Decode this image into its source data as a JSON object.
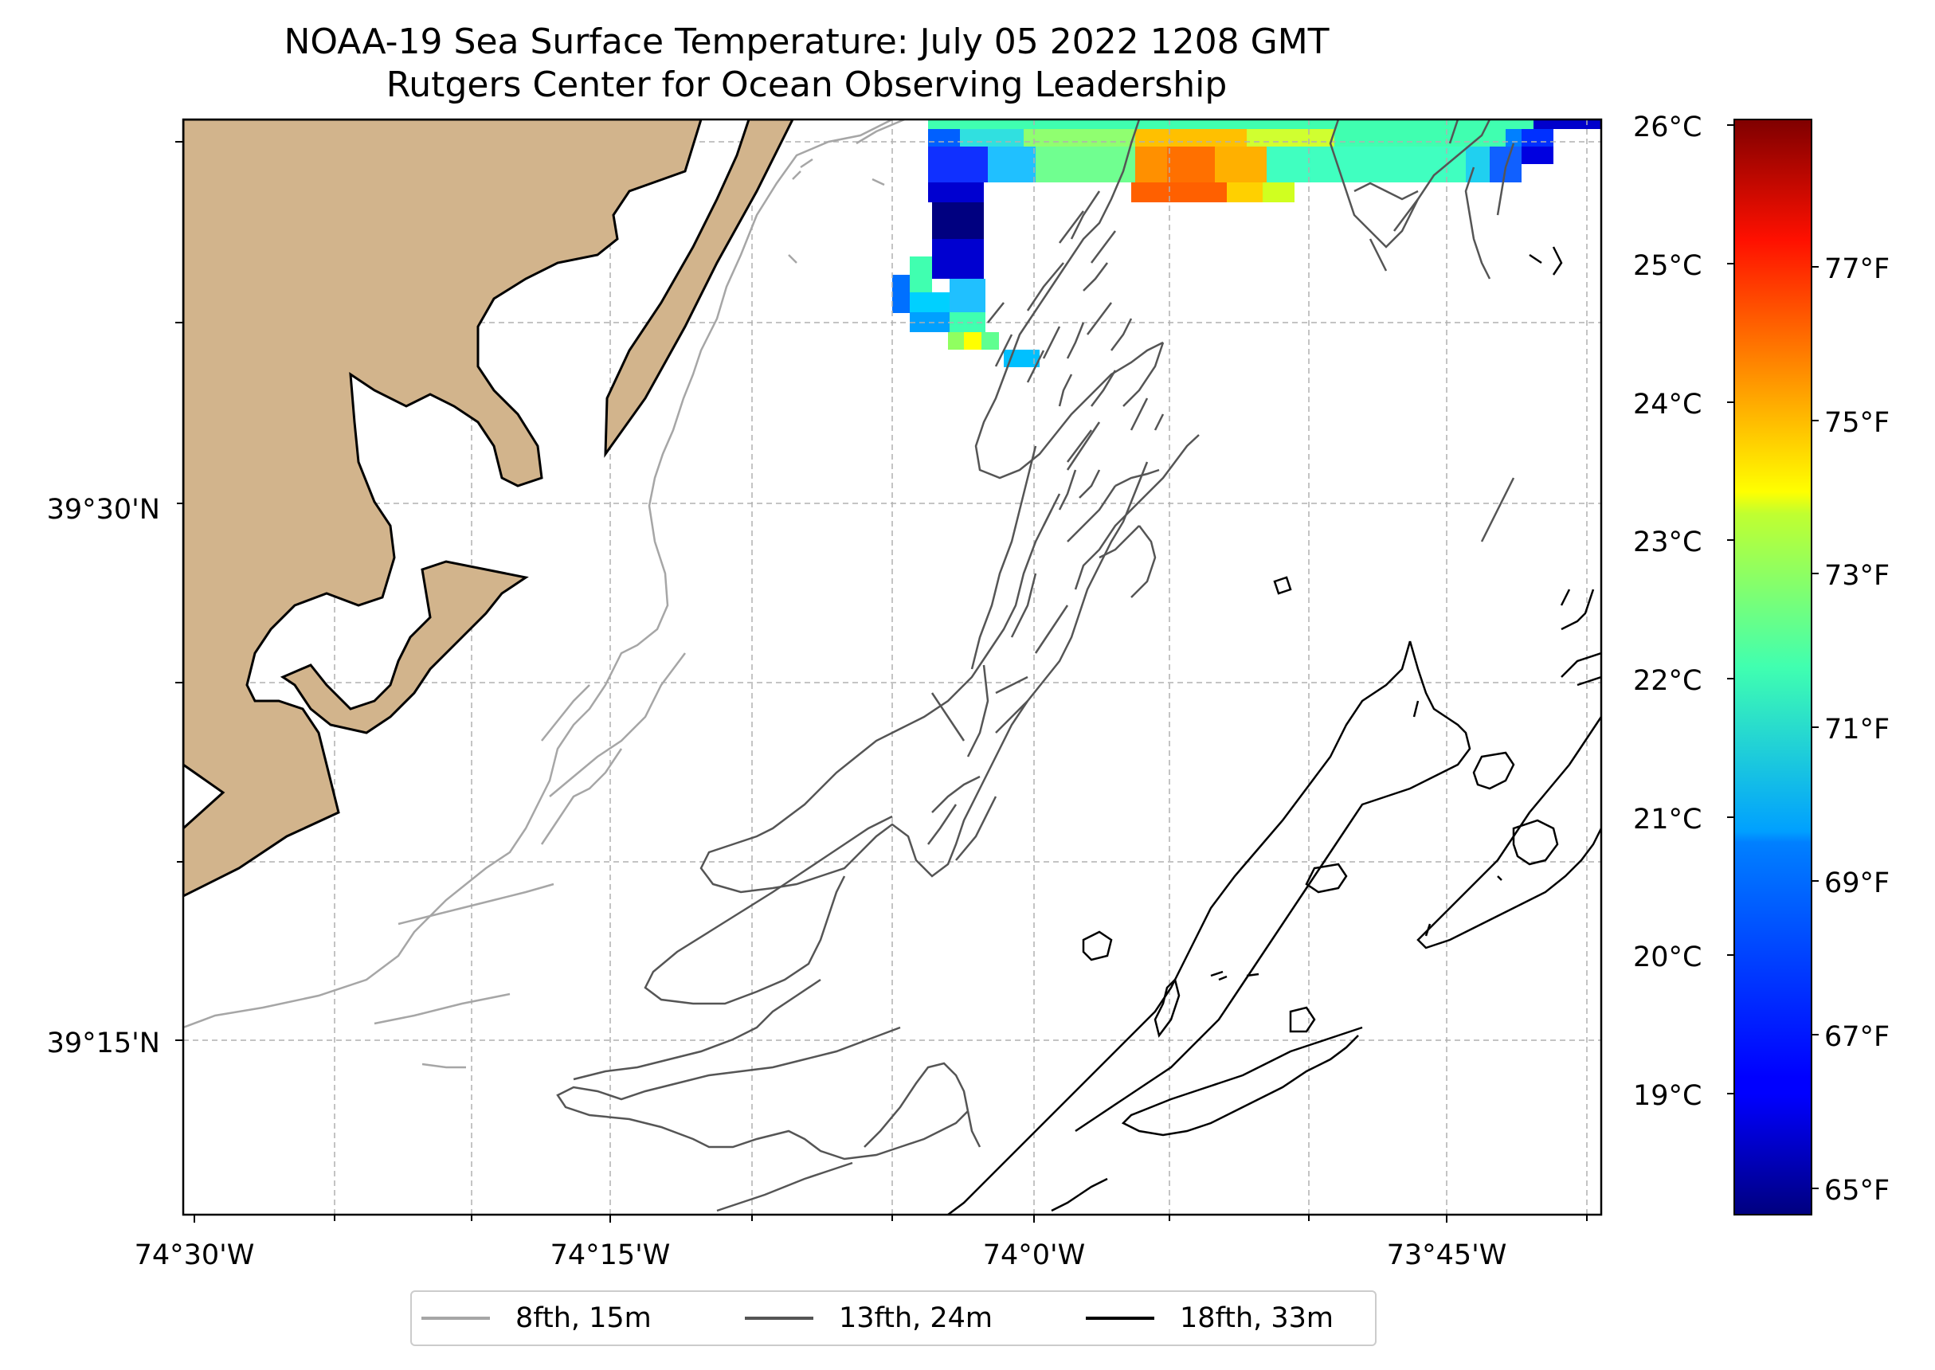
{
  "title": {
    "line1": "NOAA-19 Sea Surface Temperature: July 05 2022 1208 GMT",
    "line2": "Rutgers Center for Ocean Observing Leadership"
  },
  "axes": {
    "x_ticks": [
      "74°30'W",
      "74°15'W",
      "74°0'W",
      "73°45'W"
    ],
    "y_ticks": [
      "39°30'N",
      "39°15'N"
    ]
  },
  "colorbar": {
    "celsius_ticks": [
      "26°C",
      "25°C",
      "24°C",
      "23°C",
      "22°C",
      "21°C",
      "20°C",
      "19°C"
    ],
    "fahrenheit_ticks": [
      "77°F",
      "75°F",
      "73°F",
      "71°F",
      "69°F",
      "67°F",
      "65°F"
    ],
    "range_c": [
      18.1,
      26.05
    ],
    "colormap": "jet"
  },
  "legend": {
    "items": [
      {
        "label": "8fth, 15m",
        "color": "#a6a6a6"
      },
      {
        "label": "13fth, 24m",
        "color": "#555555"
      },
      {
        "label": "18fth, 33m",
        "color": "#000000"
      }
    ]
  },
  "colors": {
    "land": "#d2b48c",
    "gridlines": "#b0b0b0"
  }
}
